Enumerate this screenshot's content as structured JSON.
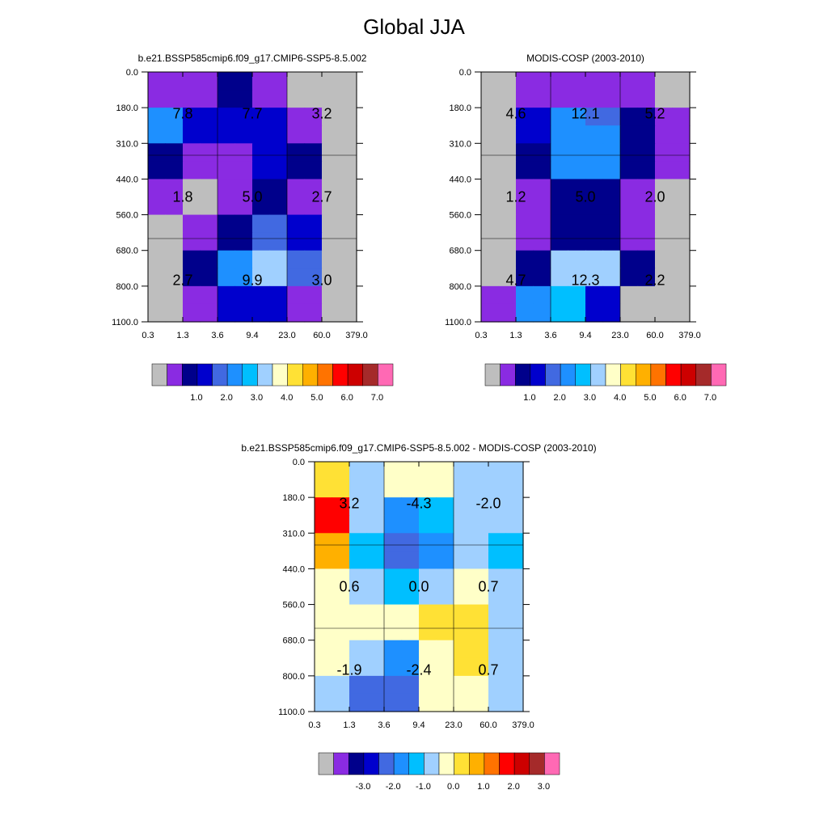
{
  "title": "Global JJA",
  "colors": {
    "cmap_abs": [
      "#bebebe",
      "#8a2be2",
      "#00008b",
      "#0000cd",
      "#4169e1",
      "#1e90ff",
      "#00bfff",
      "#a0d0ff",
      "#ffffc8",
      "#ffe135",
      "#ffb000",
      "#ff7300",
      "#ff0000",
      "#cd0000",
      "#a52a2a",
      "#ff69b4"
    ],
    "cmap_diff": [
      "#bebebe",
      "#8a2be2",
      "#00008b",
      "#0000cd",
      "#4169e1",
      "#1e90ff",
      "#00bfff",
      "#a0d0ff",
      "#ffffc8",
      "#ffe135",
      "#ffb000",
      "#ff7300",
      "#ff0000",
      "#cd0000",
      "#a52a2a",
      "#ff69b4"
    ]
  },
  "chart_data": [
    {
      "type": "heatmap",
      "title": "b.e21.BSSP585cmip6.f09_g17.CMIP6-SSP5-8.5.002",
      "x_ticks": [
        "0.3",
        "1.3",
        "3.6",
        "9.4",
        "23.0",
        "60.0",
        "379.0"
      ],
      "y_ticks": [
        "0.0",
        "180.0",
        "310.0",
        "440.0",
        "560.0",
        "680.0",
        "800.0",
        "1100.0"
      ],
      "cell_colors": [
        [
          1,
          1,
          1,
          1,
          2,
          2,
          1,
          1,
          0,
          0,
          0,
          0
        ],
        [
          1,
          1,
          1,
          1,
          2,
          2,
          1,
          1,
          0,
          0,
          0,
          0
        ],
        [
          5,
          5,
          3,
          3,
          3,
          3,
          3,
          3,
          1,
          1,
          0,
          0
        ],
        [
          5,
          5,
          3,
          3,
          3,
          3,
          3,
          3,
          1,
          1,
          0,
          0
        ],
        [
          2,
          2,
          1,
          1,
          1,
          1,
          3,
          3,
          2,
          2,
          0,
          0
        ],
        [
          2,
          2,
          1,
          1,
          1,
          1,
          3,
          3,
          2,
          2,
          0,
          0
        ],
        [
          1,
          1,
          0,
          0,
          1,
          1,
          2,
          2,
          1,
          1,
          0,
          0
        ],
        [
          1,
          1,
          0,
          0,
          1,
          1,
          2,
          2,
          1,
          1,
          0,
          0
        ],
        [
          0,
          0,
          1,
          1,
          2,
          2,
          4,
          4,
          3,
          3,
          0,
          0
        ],
        [
          0,
          0,
          1,
          1,
          2,
          2,
          4,
          4,
          3,
          3,
          0,
          0
        ],
        [
          0,
          0,
          2,
          2,
          5,
          5,
          7,
          7,
          4,
          4,
          0,
          0
        ],
        [
          0,
          0,
          2,
          2,
          5,
          5,
          7,
          7,
          4,
          4,
          0,
          0
        ],
        [
          0,
          0,
          1,
          1,
          3,
          3,
          3,
          3,
          1,
          1,
          0,
          0
        ],
        [
          0,
          0,
          1,
          1,
          3,
          3,
          3,
          3,
          1,
          1,
          0,
          0
        ]
      ],
      "cell_labels": [
        [
          "7.8",
          "7.7",
          "3.2"
        ],
        [
          "1.8",
          "5.0",
          "2.7"
        ],
        [
          "2.7",
          "9.9",
          "3.0"
        ]
      ],
      "colorbar_labels": [
        "1.0",
        "2.0",
        "3.0",
        "4.0",
        "5.0",
        "6.0",
        "7.0"
      ]
    },
    {
      "type": "heatmap",
      "title": "MODIS-COSP (2003-2010)",
      "x_ticks": [
        "0.3",
        "1.3",
        "3.6",
        "9.4",
        "23.0",
        "60.0",
        "379.0"
      ],
      "y_ticks": [
        "0.0",
        "180.0",
        "310.0",
        "440.0",
        "560.0",
        "680.0",
        "800.0",
        "1100.0"
      ],
      "cell_colors": [
        [
          0,
          0,
          1,
          1,
          1,
          1,
          1,
          1,
          1,
          1,
          0,
          0
        ],
        [
          0,
          0,
          1,
          1,
          1,
          1,
          1,
          1,
          1,
          1,
          0,
          0
        ],
        [
          0,
          0,
          3,
          3,
          5,
          5,
          4,
          4,
          2,
          2,
          1,
          1
        ],
        [
          0,
          0,
          3,
          3,
          5,
          5,
          5,
          5,
          2,
          2,
          1,
          1
        ],
        [
          0,
          0,
          2,
          2,
          5,
          5,
          5,
          5,
          2,
          2,
          1,
          1
        ],
        [
          0,
          0,
          2,
          2,
          5,
          5,
          5,
          5,
          2,
          2,
          1,
          1
        ],
        [
          0,
          0,
          1,
          1,
          2,
          2,
          2,
          2,
          1,
          1,
          0,
          0
        ],
        [
          0,
          0,
          1,
          1,
          2,
          2,
          2,
          2,
          1,
          1,
          0,
          0
        ],
        [
          0,
          0,
          1,
          1,
          2,
          2,
          2,
          2,
          1,
          1,
          0,
          0
        ],
        [
          0,
          0,
          1,
          1,
          2,
          2,
          2,
          2,
          1,
          1,
          0,
          0
        ],
        [
          0,
          0,
          2,
          2,
          7,
          7,
          7,
          7,
          2,
          2,
          0,
          0
        ],
        [
          0,
          0,
          2,
          2,
          7,
          7,
          7,
          7,
          2,
          2,
          0,
          0
        ],
        [
          1,
          1,
          5,
          5,
          6,
          6,
          3,
          3,
          0,
          0,
          0,
          0
        ],
        [
          1,
          1,
          5,
          5,
          6,
          6,
          3,
          3,
          0,
          0,
          0,
          0
        ]
      ],
      "cell_labels": [
        [
          "4.6",
          "12.1",
          "5.2"
        ],
        [
          "1.2",
          "5.0",
          "2.0"
        ],
        [
          "4.7",
          "12.3",
          "2.2"
        ]
      ],
      "colorbar_labels": [
        "1.0",
        "2.0",
        "3.0",
        "4.0",
        "5.0",
        "6.0",
        "7.0"
      ]
    },
    {
      "type": "heatmap",
      "title": "b.e21.BSSP585cmip6.f09_g17.CMIP6-SSP5-8.5.002 - MODIS-COSP (2003-2010)",
      "x_ticks": [
        "0.3",
        "1.3",
        "3.6",
        "9.4",
        "23.0",
        "60.0",
        "379.0"
      ],
      "y_ticks": [
        "0.0",
        "180.0",
        "310.0",
        "440.0",
        "560.0",
        "680.0",
        "800.0",
        "1100.0"
      ],
      "cell_colors": [
        [
          9,
          9,
          7,
          7,
          8,
          8,
          8,
          8,
          7,
          7,
          7,
          7
        ],
        [
          9,
          9,
          7,
          7,
          8,
          8,
          8,
          8,
          7,
          7,
          7,
          7
        ],
        [
          12,
          12,
          7,
          7,
          5,
          5,
          6,
          6,
          7,
          7,
          7,
          7
        ],
        [
          12,
          12,
          7,
          7,
          5,
          5,
          6,
          6,
          7,
          7,
          7,
          7
        ],
        [
          10,
          10,
          6,
          6,
          4,
          4,
          5,
          5,
          7,
          7,
          6,
          6
        ],
        [
          10,
          10,
          6,
          6,
          4,
          4,
          5,
          5,
          7,
          7,
          6,
          6
        ],
        [
          8,
          8,
          7,
          7,
          6,
          6,
          7,
          7,
          8,
          8,
          7,
          7
        ],
        [
          8,
          8,
          7,
          7,
          6,
          6,
          7,
          7,
          8,
          8,
          7,
          7
        ],
        [
          8,
          8,
          8,
          8,
          8,
          8,
          9,
          9,
          9,
          9,
          7,
          7
        ],
        [
          8,
          8,
          8,
          8,
          8,
          8,
          9,
          9,
          9,
          9,
          7,
          7
        ],
        [
          8,
          8,
          7,
          7,
          5,
          5,
          8,
          8,
          9,
          9,
          7,
          7
        ],
        [
          8,
          8,
          7,
          7,
          5,
          5,
          8,
          8,
          9,
          9,
          7,
          7
        ],
        [
          7,
          7,
          4,
          4,
          4,
          4,
          8,
          8,
          8,
          8,
          7,
          7
        ],
        [
          7,
          7,
          4,
          4,
          4,
          4,
          8,
          8,
          8,
          8,
          7,
          7
        ]
      ],
      "cell_labels": [
        [
          "3.2",
          "-4.3",
          "-2.0"
        ],
        [
          "0.6",
          "0.0",
          "0.7"
        ],
        [
          "-1.9",
          "-2.4",
          "0.7"
        ]
      ],
      "colorbar_labels": [
        "-3.0",
        "-2.0",
        "-1.0",
        "0.0",
        "1.0",
        "2.0",
        "3.0"
      ]
    }
  ]
}
